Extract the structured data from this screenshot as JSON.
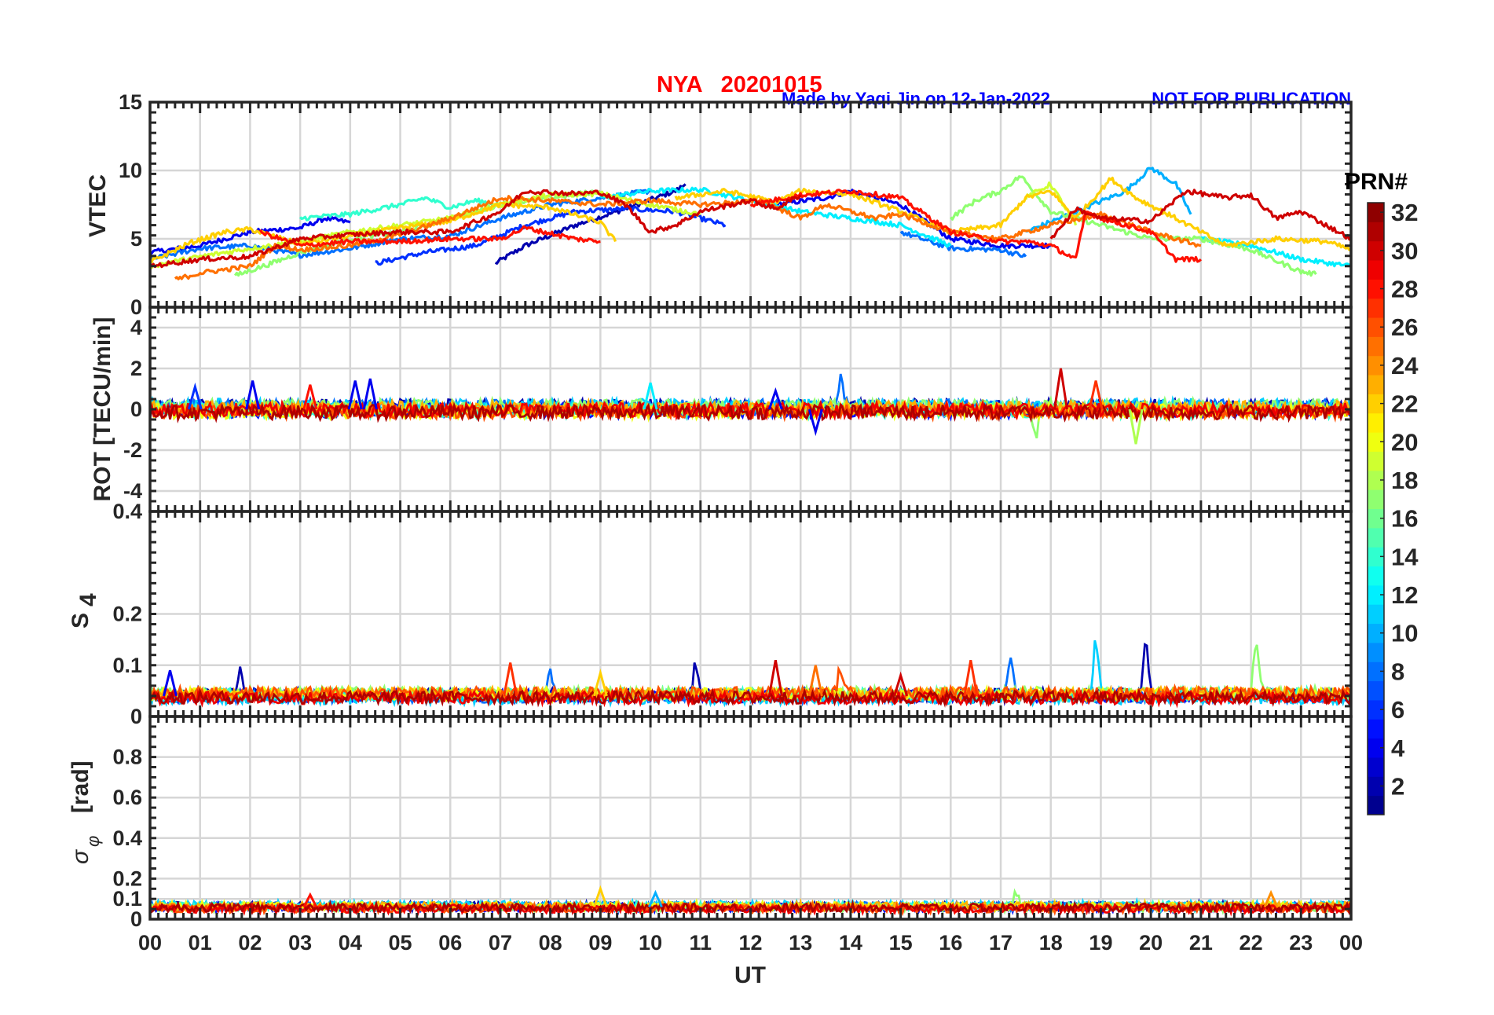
{
  "chart_data": [
    {
      "panel": "vtec",
      "type": "line",
      "title": "NYA   20201015",
      "credit": "Made by Yaqi Jin on 12-Jan-2022",
      "notice": "NOT FOR PUBLICATION",
      "ylabel": "VTEC",
      "ylim": [
        0,
        15
      ],
      "yticks": [
        0,
        5,
        10,
        15
      ],
      "ytick_labels": [
        "0",
        "5",
        "10",
        "15"
      ],
      "series": [
        {
          "prn": 2,
          "points": [
            [
              6.9,
              3.2
            ],
            [
              7.5,
              4.5
            ],
            [
              8.5,
              6
            ],
            [
              9.5,
              7.2
            ],
            [
              10.5,
              8.5
            ],
            [
              10.7,
              9
            ]
          ]
        },
        {
          "prn": 4,
          "points": [
            [
              0,
              4
            ],
            [
              1,
              4.5
            ],
            [
              2,
              5.5
            ],
            [
              3,
              5.8
            ],
            [
              3.5,
              6.5
            ],
            [
              4,
              6.2
            ]
          ]
        },
        {
          "prn": 4,
          "points": [
            [
              12.5,
              7.5
            ],
            [
              13.5,
              8
            ],
            [
              14,
              8.5
            ],
            [
              15,
              7.5
            ],
            [
              16,
              5
            ],
            [
              17,
              4.5
            ],
            [
              18,
              4.5
            ]
          ]
        },
        {
          "prn": 6,
          "points": [
            [
              4.5,
              3.2
            ],
            [
              5.5,
              4
            ],
            [
              6.5,
              4.5
            ],
            [
              7.5,
              6
            ],
            [
              8.5,
              7
            ],
            [
              9.5,
              7.2
            ],
            [
              10.5,
              7
            ],
            [
              11.5,
              6
            ]
          ]
        },
        {
          "prn": 8,
          "points": [
            [
              0,
              3.5
            ],
            [
              1,
              4.3
            ],
            [
              2,
              4.5
            ],
            [
              3,
              3.8
            ],
            [
              4,
              4.3
            ],
            [
              5,
              5
            ],
            [
              6,
              5.2
            ],
            [
              7,
              6.5
            ],
            [
              8,
              7.5
            ],
            [
              9,
              8
            ],
            [
              10,
              8.5
            ]
          ]
        },
        {
          "prn": 8,
          "points": [
            [
              15,
              5.5
            ],
            [
              16,
              4.3
            ],
            [
              17,
              4.2
            ],
            [
              17.5,
              3.7
            ]
          ]
        },
        {
          "prn": 10,
          "points": [
            [
              17.5,
              5.5
            ],
            [
              18.5,
              7
            ],
            [
              19.5,
              8.5
            ],
            [
              20,
              10.2
            ],
            [
              20.5,
              9
            ],
            [
              20.8,
              6.8
            ]
          ]
        },
        {
          "prn": 12,
          "points": [
            [
              9,
              8
            ],
            [
              10,
              8.5
            ],
            [
              11,
              8.6
            ],
            [
              12,
              7.8
            ],
            [
              13,
              7
            ],
            [
              14,
              6.5
            ],
            [
              15,
              6
            ],
            [
              16,
              4.5
            ]
          ]
        },
        {
          "prn": 12,
          "points": [
            [
              21,
              5
            ],
            [
              22,
              4.5
            ],
            [
              23,
              3.5
            ],
            [
              24,
              3
            ]
          ]
        },
        {
          "prn": 14,
          "points": [
            [
              3,
              6.5
            ],
            [
              4,
              6.8
            ],
            [
              5,
              7.5
            ],
            [
              5.5,
              8
            ],
            [
              6,
              7.3
            ],
            [
              6.5,
              7.8
            ],
            [
              7,
              7.5
            ]
          ]
        },
        {
          "prn": 17,
          "points": [
            [
              1.7,
              2.3
            ],
            [
              2.5,
              3.3
            ],
            [
              3,
              4
            ],
            [
              4,
              5
            ],
            [
              5,
              5.5
            ],
            [
              6,
              6.5
            ],
            [
              7,
              7.5
            ],
            [
              8,
              8
            ],
            [
              9,
              8.5
            ]
          ]
        },
        {
          "prn": 17,
          "points": [
            [
              16,
              6.5
            ],
            [
              16.5,
              7.8
            ],
            [
              17,
              8.5
            ],
            [
              17.4,
              9.6
            ],
            [
              18,
              7
            ],
            [
              19,
              6
            ],
            [
              20,
              5
            ],
            [
              21,
              5
            ],
            [
              22,
              4.2
            ],
            [
              23,
              2.6
            ],
            [
              23.3,
              2.4
            ]
          ]
        },
        {
          "prn": 19,
          "points": [
            [
              0,
              3
            ],
            [
              1,
              3.7
            ],
            [
              2,
              4.3
            ],
            [
              3,
              4.8
            ],
            [
              4,
              5.5
            ],
            [
              5,
              6
            ],
            [
              6,
              6.5
            ],
            [
              7,
              7.5
            ],
            [
              8,
              8.2
            ],
            [
              9,
              8.3
            ],
            [
              10,
              7.5
            ],
            [
              11,
              6.8
            ]
          ]
        },
        {
          "prn": 19,
          "points": [
            [
              17.5,
              8
            ],
            [
              18,
              9
            ],
            [
              18.5,
              6
            ]
          ]
        },
        {
          "prn": 22,
          "points": [
            [
              0,
              3.3
            ],
            [
              0.8,
              4.7
            ],
            [
              1.5,
              5.5
            ],
            [
              2,
              5.7
            ],
            [
              3,
              4.6
            ],
            [
              4,
              5.2
            ],
            [
              5,
              5.8
            ],
            [
              6,
              6.3
            ],
            [
              7,
              7.5
            ],
            [
              8,
              7.3
            ],
            [
              9,
              6.2
            ],
            [
              9.3,
              4.8
            ]
          ]
        },
        {
          "prn": 22,
          "points": [
            [
              10.5,
              8
            ],
            [
              11.5,
              8.5
            ],
            [
              12.5,
              7.7
            ],
            [
              13,
              8.5
            ],
            [
              14,
              8.3
            ],
            [
              15,
              7
            ],
            [
              16,
              5.5
            ],
            [
              17,
              6
            ],
            [
              17.5,
              8
            ],
            [
              18,
              8.5
            ],
            [
              18.5,
              6.5
            ],
            [
              19.2,
              9.4
            ],
            [
              19.7,
              8
            ],
            [
              20.5,
              6.5
            ],
            [
              21.5,
              4.5
            ],
            [
              22.5,
              5
            ],
            [
              23.5,
              4.8
            ],
            [
              24,
              4.2
            ]
          ]
        },
        {
          "prn": 25,
          "points": [
            [
              0.5,
              2
            ],
            [
              1,
              2.5
            ],
            [
              2,
              3
            ],
            [
              2.5,
              4.5
            ],
            [
              3,
              4.2
            ],
            [
              4,
              4.5
            ],
            [
              5,
              5.3
            ],
            [
              6,
              6.5
            ],
            [
              7,
              8
            ],
            [
              8,
              7.8
            ],
            [
              9,
              7.5
            ],
            [
              10,
              7.8
            ],
            [
              11,
              7.5
            ],
            [
              12.2,
              7.8
            ],
            [
              13,
              6.5
            ],
            [
              13.5,
              7.5
            ],
            [
              14.5,
              6.5
            ],
            [
              15,
              6.8
            ],
            [
              16,
              5.5
            ],
            [
              17,
              5
            ],
            [
              18,
              6
            ],
            [
              19,
              6.8
            ],
            [
              20,
              5.5
            ],
            [
              21,
              4.5
            ]
          ]
        },
        {
          "prn": 28,
          "points": [
            [
              2.2,
              5.5
            ],
            [
              3,
              4.5
            ],
            [
              4,
              4.8
            ],
            [
              5,
              4.8
            ],
            [
              6,
              5
            ],
            [
              7,
              5
            ],
            [
              7.5,
              5.8
            ],
            [
              8.5,
              5
            ],
            [
              9,
              4.8
            ]
          ]
        },
        {
          "prn": 28,
          "points": [
            [
              12,
              7.5
            ],
            [
              13,
              8.2
            ],
            [
              14,
              8.5
            ],
            [
              15,
              8
            ],
            [
              16,
              5.5
            ],
            [
              17,
              4.8
            ],
            [
              17.5,
              4.8
            ],
            [
              18,
              4.5
            ],
            [
              18.5,
              3.5
            ],
            [
              18.7,
              7
            ],
            [
              19,
              6.5
            ],
            [
              20,
              5.5
            ],
            [
              20.5,
              3.5
            ],
            [
              21,
              3.5
            ]
          ]
        },
        {
          "prn": 30,
          "points": [
            [
              0,
              3
            ],
            [
              1,
              3.5
            ],
            [
              2,
              3.7
            ],
            [
              3,
              5
            ],
            [
              4,
              5.3
            ],
            [
              5,
              5.5
            ],
            [
              6,
              5.5
            ],
            [
              7,
              7
            ],
            [
              7.5,
              8.5
            ],
            [
              8.5,
              8.3
            ],
            [
              9,
              8.4
            ],
            [
              9.5,
              7.5
            ],
            [
              10,
              5.5
            ],
            [
              10.5,
              6
            ],
            [
              11,
              7
            ],
            [
              12,
              7.8
            ],
            [
              12.5,
              7.2
            ],
            [
              13,
              8.2
            ]
          ]
        },
        {
          "prn": 30,
          "points": [
            [
              18,
              5
            ],
            [
              18.5,
              7.2
            ],
            [
              19,
              6.5
            ],
            [
              20,
              6.3
            ],
            [
              20.7,
              8.5
            ],
            [
              21.5,
              8
            ],
            [
              22,
              8.2
            ],
            [
              22.5,
              6.5
            ],
            [
              23,
              7
            ],
            [
              23.5,
              6
            ],
            [
              24,
              5
            ]
          ]
        }
      ]
    },
    {
      "panel": "rot",
      "type": "line",
      "ylabel": "ROT [TECU/min]",
      "ylim": [
        -5,
        5
      ],
      "yticks": [
        -4,
        -2,
        0,
        2,
        4
      ],
      "ytick_labels": [
        "-4",
        "-2",
        "0",
        "2",
        "4"
      ],
      "baseline": 0,
      "spikes": [
        [
          0.9,
          1.1,
          6
        ],
        [
          2.05,
          1.4,
          4
        ],
        [
          3.2,
          1.2,
          28
        ],
        [
          4.1,
          1.4,
          4
        ],
        [
          4.4,
          1.5,
          4
        ],
        [
          10.0,
          1.3,
          12
        ],
        [
          12.5,
          0.9,
          4
        ],
        [
          13.8,
          1.4,
          8
        ],
        [
          18.2,
          2.0,
          30
        ],
        [
          18.9,
          1.4,
          27
        ],
        [
          13.3,
          -1.1,
          4
        ],
        [
          19.7,
          -1.7,
          18
        ],
        [
          17.7,
          -1.4,
          17
        ]
      ]
    },
    {
      "panel": "s4",
      "type": "line",
      "ylabel": "S",
      "ylabel_sub": "4",
      "ylim": [
        0,
        0.4
      ],
      "yticks": [
        0,
        0.1,
        0.2,
        0.4
      ],
      "ytick_labels": [
        "0",
        "0.1",
        "0.2",
        "0.4"
      ],
      "baseline": 0.04,
      "spikes": [
        [
          0.4,
          0.09,
          4
        ],
        [
          1.8,
          0.085,
          2
        ],
        [
          7.2,
          0.105,
          27
        ],
        [
          8.0,
          0.09,
          8
        ],
        [
          9.0,
          0.085,
          22
        ],
        [
          10.9,
          0.095,
          2
        ],
        [
          12.5,
          0.11,
          30
        ],
        [
          13.3,
          0.1,
          25
        ],
        [
          13.8,
          0.09,
          26
        ],
        [
          15.0,
          0.08,
          30
        ],
        [
          16.4,
          0.11,
          27
        ],
        [
          17.2,
          0.115,
          8
        ],
        [
          18.9,
          0.155,
          11
        ],
        [
          19.9,
          0.145,
          2
        ],
        [
          22.1,
          0.14,
          17
        ]
      ]
    },
    {
      "panel": "sigma_phi",
      "type": "line",
      "ylabel": "σ",
      "ylabel_sub": "φ",
      "ylabel_unit": "[rad]",
      "ylim": [
        0,
        1
      ],
      "yticks": [
        0,
        0.1,
        0.2,
        0.4,
        0.6,
        0.8
      ],
      "ytick_labels": [
        "0",
        "0.1",
        "0.2",
        "0.4",
        "0.6",
        "0.8"
      ],
      "baseline": 0.06,
      "spikes": [
        [
          3.2,
          0.12,
          28
        ],
        [
          9.0,
          0.15,
          22
        ],
        [
          10.1,
          0.13,
          10
        ],
        [
          17.3,
          0.14,
          17
        ],
        [
          22.4,
          0.13,
          24
        ]
      ]
    }
  ],
  "xaxis": {
    "label": "UT",
    "xlim": [
      0,
      24
    ],
    "tick_labels": [
      "00",
      "01",
      "02",
      "03",
      "04",
      "05",
      "06",
      "07",
      "08",
      "09",
      "10",
      "11",
      "12",
      "13",
      "14",
      "15",
      "16",
      "17",
      "18",
      "19",
      "20",
      "21",
      "22",
      "23",
      "00"
    ]
  },
  "colorbar": {
    "title": "PRN#",
    "colormap": "jet",
    "range": [
      1,
      32
    ],
    "tick_labels": [
      "2",
      "4",
      "6",
      "8",
      "10",
      "12",
      "14",
      "16",
      "18",
      "20",
      "22",
      "24",
      "26",
      "28",
      "30",
      "32"
    ]
  },
  "colors": {
    "title": "#ff0000",
    "credit": "#0000ff",
    "axis": "#262626",
    "grid": "#d9d9d9"
  }
}
